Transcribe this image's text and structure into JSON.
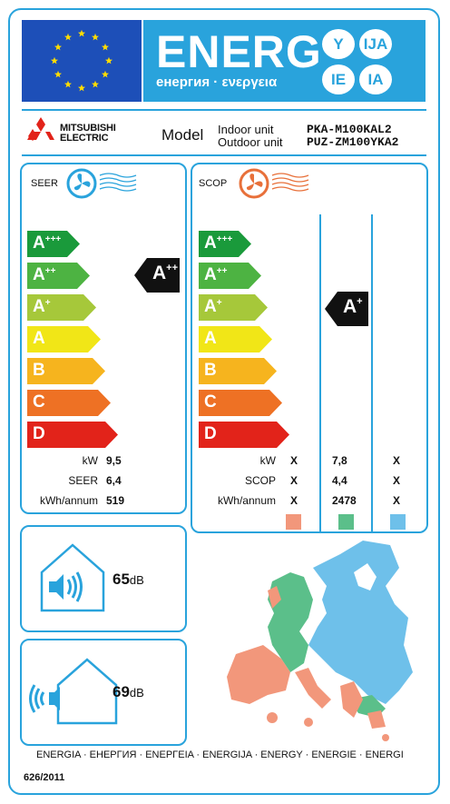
{
  "header": {
    "energ": "ENERG",
    "subtitle": "енергия · ενεργεια",
    "languages": [
      "Y",
      "IJA",
      "IE",
      "IA"
    ]
  },
  "supplier": {
    "brand_line1": "MITSUBISHI",
    "brand_line2": "ELECTRIC",
    "model_label": "Model",
    "indoor_label": "Indoor unit",
    "outdoor_label": "Outdoor unit",
    "indoor_model": "PKA-M100KAL2",
    "outdoor_model": "PUZ-ZM100YKA2"
  },
  "classes": [
    {
      "base": "A",
      "plus": "+++",
      "color": "#1a9a3b"
    },
    {
      "base": "A",
      "plus": "++",
      "color": "#4db342"
    },
    {
      "base": "A",
      "plus": "+",
      "color": "#a6c83a"
    },
    {
      "base": "A",
      "plus": "",
      "color": "#f1e617"
    },
    {
      "base": "B",
      "plus": "",
      "color": "#f6b41e"
    },
    {
      "base": "C",
      "plus": "",
      "color": "#ee7124"
    },
    {
      "base": "D",
      "plus": "",
      "color": "#e2231a"
    }
  ],
  "seer": {
    "title": "SEER",
    "rating_base": "A",
    "rating_plus": "++",
    "rows": [
      {
        "label": "kW",
        "value": "9,5"
      },
      {
        "label": "SEER",
        "value": "6,4"
      },
      {
        "label": "kWh/annum",
        "value": "519"
      }
    ]
  },
  "scop": {
    "title": "SCOP",
    "rating_base": "A",
    "rating_plus": "+",
    "rows": [
      {
        "label": "kW",
        "values": [
          "X",
          "7,8",
          "X"
        ]
      },
      {
        "label": "SCOP",
        "values": [
          "X",
          "4,4",
          "X"
        ]
      },
      {
        "label": "kWh/annum",
        "values": [
          "X",
          "2478",
          "X"
        ]
      }
    ],
    "zone_colors": [
      "#f2977b",
      "#5bbf8a",
      "#6ec0ea"
    ]
  },
  "noise": {
    "indoor_value": "65",
    "outdoor_value": "69",
    "unit": "dB"
  },
  "footer": {
    "languages": "ENERGIA · ЕНЕРГИЯ · ΕΝΕΡΓΕΙΑ · ENERGIJA · ENERGY · ENERGIE · ENERGI",
    "regulation": "626/2011"
  }
}
